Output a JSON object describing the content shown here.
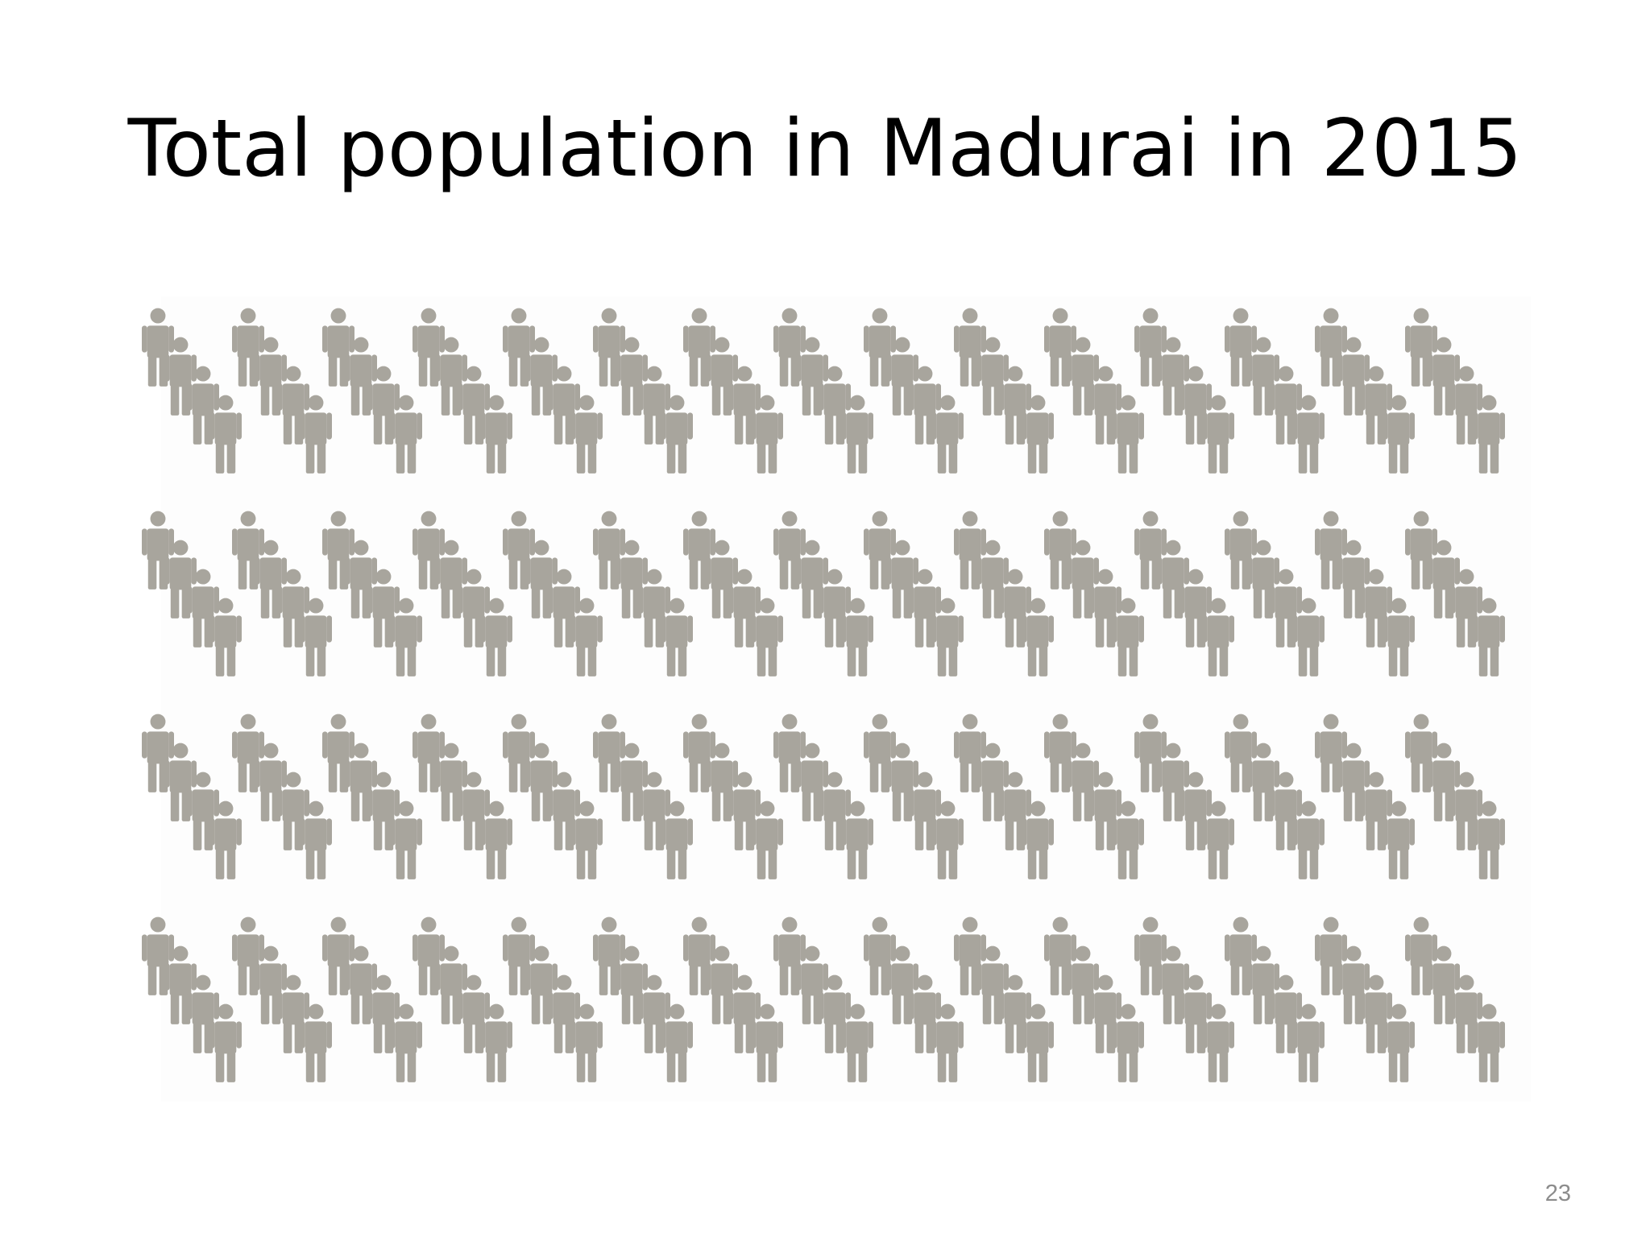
{
  "slide": {
    "title": "Total population in Madurai in 2015",
    "page_number": "23"
  },
  "pictogram": {
    "icon": "person-icon",
    "icon_color": "#a8a59d",
    "background_color": "#ffffff",
    "rows": 4,
    "groups_per_row": 15,
    "figures_per_group": 4
  }
}
